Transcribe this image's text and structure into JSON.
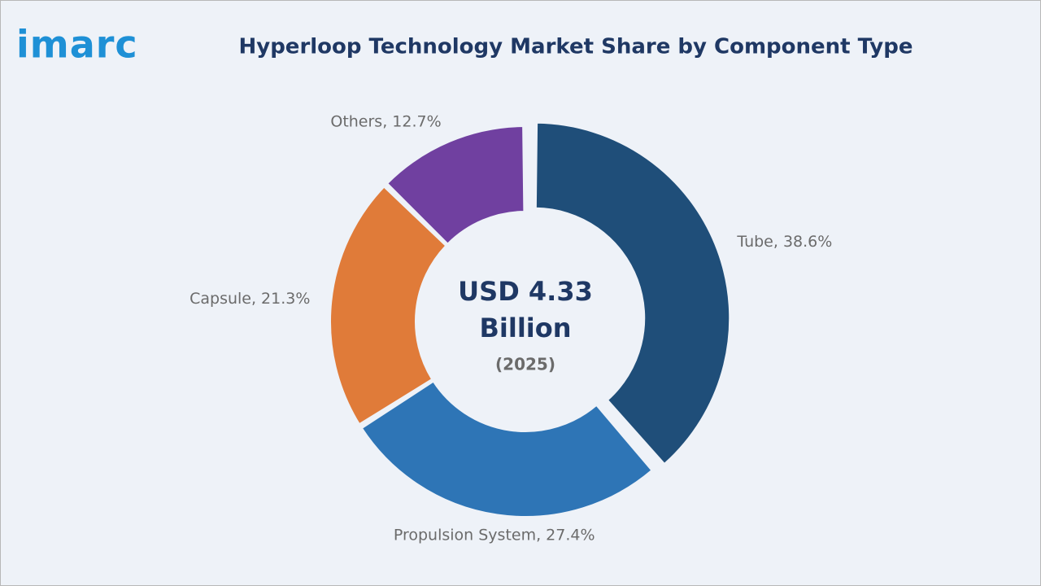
{
  "brand": "imarc",
  "chart_data": {
    "type": "donut",
    "title": "Hyperloop Technology Market Share by Component Type",
    "values": [
      38.6,
      27.4,
      21.3,
      12.7
    ],
    "value_labels": [
      "Tube, 38.6%",
      "Propulsion System, 27.4%",
      "Capsule, 21.3%",
      "Others, 12.7%"
    ],
    "colors": [
      "#1f4e79",
      "#2e75b6",
      "#e07b39",
      "#7040a0"
    ],
    "exploded": [
      true,
      false,
      false,
      false
    ],
    "center_label": [
      "USD 4.33",
      "Billion",
      "(2025)"
    ]
  }
}
